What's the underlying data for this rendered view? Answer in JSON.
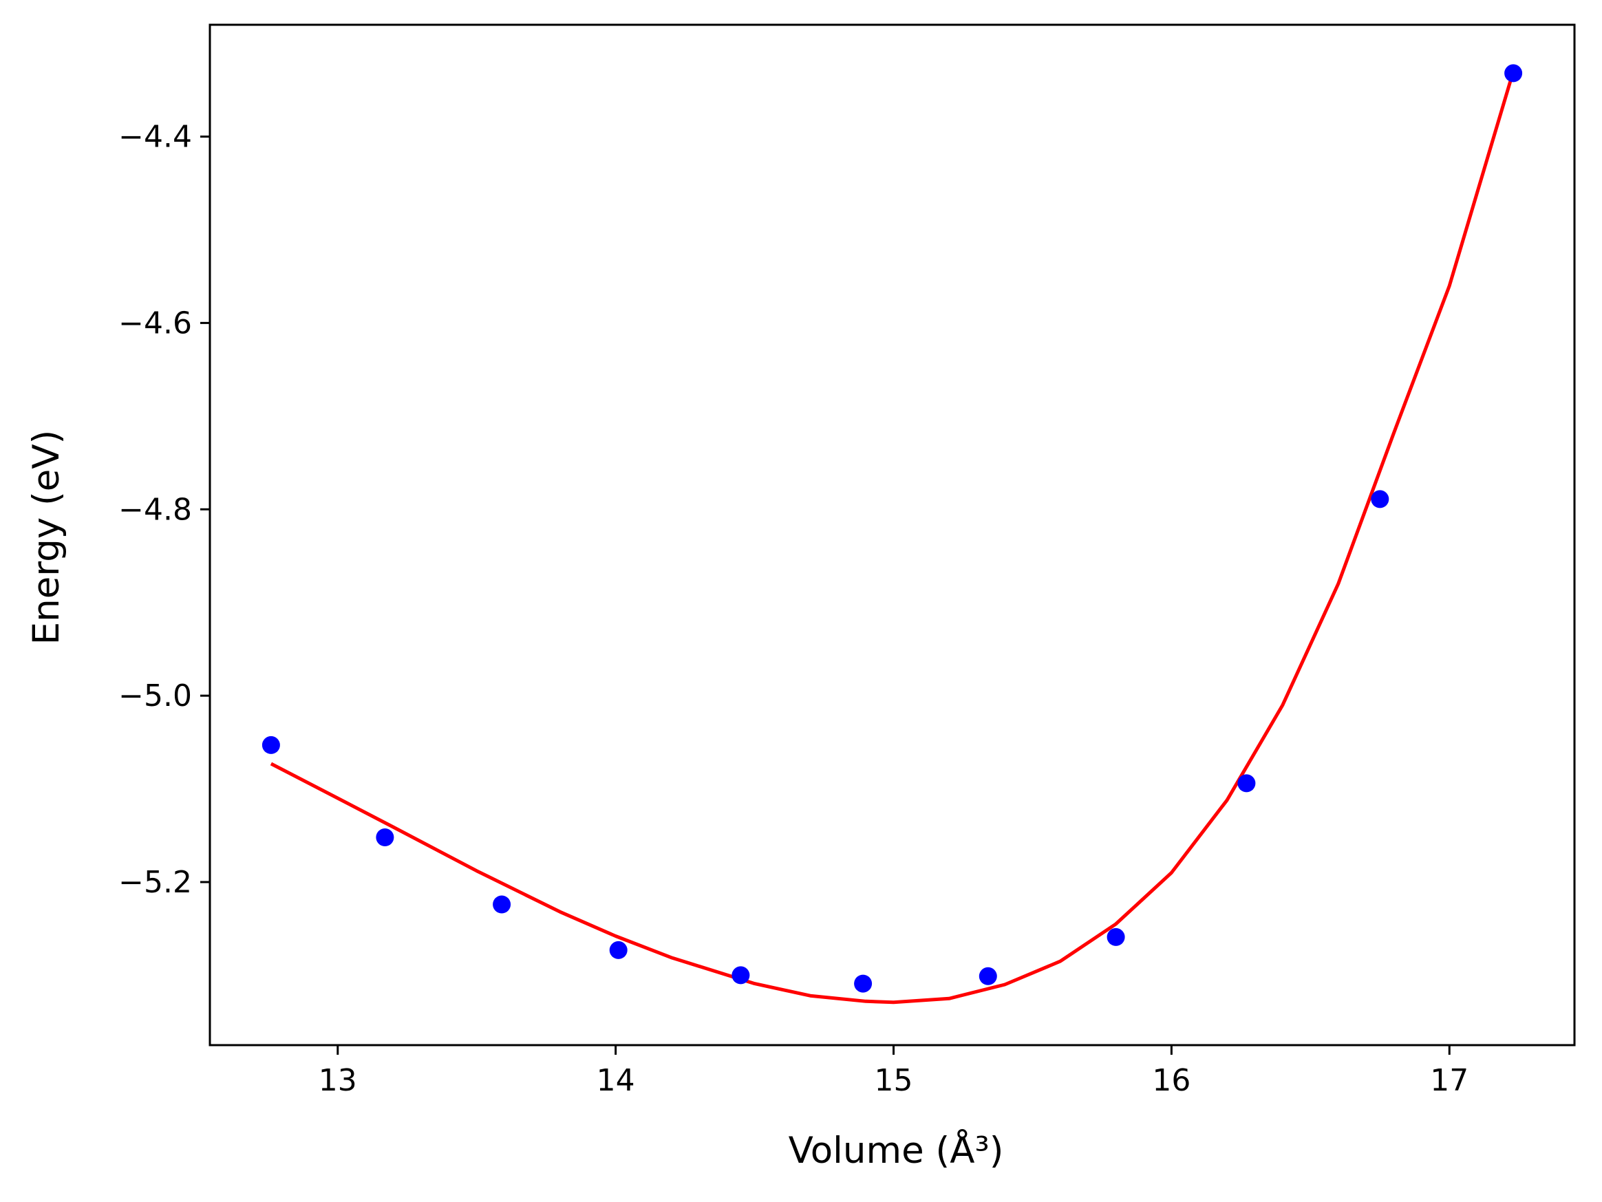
{
  "chart_data": {
    "type": "scatter",
    "title": "",
    "xlabel": "Volume (Å³)",
    "ylabel": "Energy (eV)",
    "xlim": [
      12.54,
      17.45
    ],
    "ylim": [
      -5.375,
      -4.28
    ],
    "x_ticks": [
      13,
      14,
      15,
      16,
      17
    ],
    "x_tick_labels": [
      "13",
      "14",
      "15",
      "16",
      "17"
    ],
    "y_ticks": [
      -4.4,
      -4.6,
      -4.8,
      -5.0,
      -5.2
    ],
    "y_tick_labels": [
      "−4.4",
      "−4.6",
      "−4.8",
      "−5.0",
      "−5.2"
    ],
    "grid": false,
    "colors": {
      "points": "#0000ff",
      "fit": "#ff0000",
      "axes": "#000000"
    },
    "series": [
      {
        "kind": "scatter",
        "x": [
          12.76,
          13.17,
          13.59,
          14.01,
          14.45,
          14.89,
          15.34,
          15.8,
          16.27,
          16.75,
          17.23
        ],
        "y": [
          -5.053,
          -5.152,
          -5.224,
          -5.273,
          -5.3,
          -5.309,
          -5.301,
          -5.259,
          -5.094,
          -4.789,
          -4.332
        ]
      },
      {
        "kind": "line",
        "x": [
          12.76,
          13.0,
          13.2,
          13.5,
          13.8,
          14.0,
          14.2,
          14.5,
          14.7,
          14.9,
          15.0,
          15.2,
          15.4,
          15.6,
          15.8,
          16.0,
          16.2,
          16.4,
          16.6,
          16.8,
          17.0,
          17.23
        ],
        "y": [
          -5.073,
          -5.11,
          -5.141,
          -5.188,
          -5.232,
          -5.258,
          -5.281,
          -5.309,
          -5.322,
          -5.328,
          -5.329,
          -5.325,
          -5.31,
          -5.285,
          -5.245,
          -5.19,
          -5.112,
          -5.01,
          -4.88,
          -4.718,
          -4.56,
          -4.33
        ]
      }
    ]
  }
}
